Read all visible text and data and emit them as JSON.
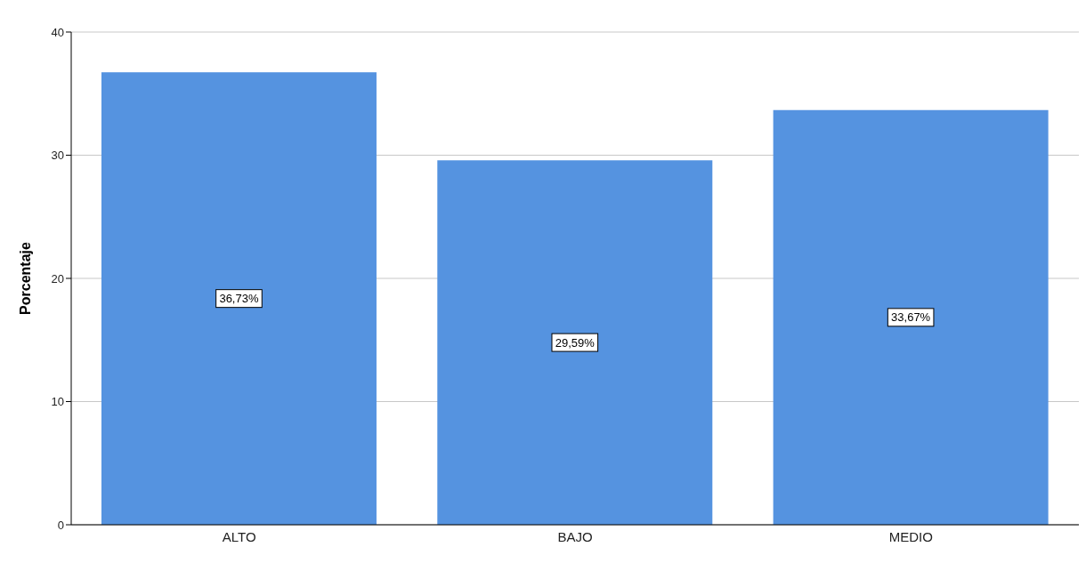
{
  "chart_data": {
    "type": "bar",
    "ylabel": "Porcentaje",
    "categories": [
      "ALTO",
      "BAJO",
      "MEDIO"
    ],
    "values": [
      36.73,
      29.59,
      33.67
    ],
    "color": "#5593e0",
    "value_labels": [
      "36,73%",
      "29,59%",
      "33,67%"
    ],
    "ylim": [
      0,
      40
    ],
    "yticks": [
      0,
      10,
      20,
      30,
      40
    ],
    "grid": "y"
  }
}
